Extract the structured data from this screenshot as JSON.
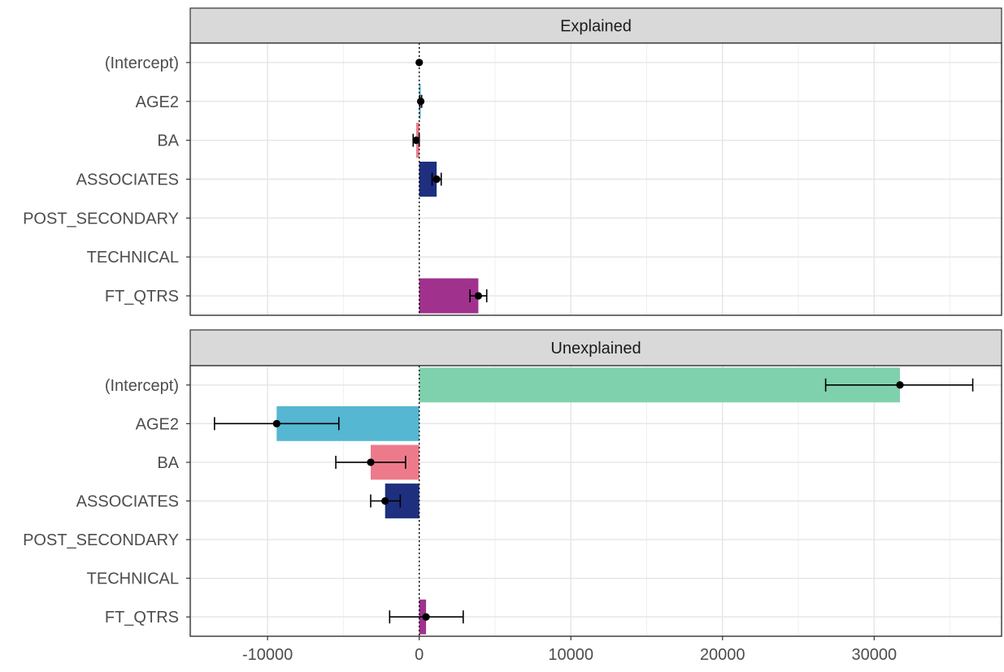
{
  "chart_data": {
    "type": "bar",
    "facets": [
      {
        "title": "Explained",
        "categories": [
          "(Intercept)",
          "AGE2",
          "BA",
          "ASSOCIATES",
          "POST_SECONDARY",
          "TECHNICAL",
          "FT_QTRS"
        ],
        "values": [
          0,
          100,
          -200,
          1150,
          0,
          0,
          3900
        ],
        "lower": [
          0,
          40,
          -400,
          850,
          0,
          0,
          3350
        ],
        "upper": [
          0,
          160,
          0,
          1450,
          0,
          0,
          4450
        ],
        "colors": [
          "#7fd1ae",
          "#55b7d1",
          "#ed7a8b",
          "#1e2f7f",
          "#000000",
          "#000000",
          "#a0328e"
        ],
        "show_point": [
          true,
          true,
          true,
          true,
          false,
          false,
          true
        ]
      },
      {
        "title": "Unexplained",
        "categories": [
          "(Intercept)",
          "AGE2",
          "BA",
          "ASSOCIATES",
          "POST_SECONDARY",
          "TECHNICAL",
          "FT_QTRS"
        ],
        "values": [
          31700,
          -9400,
          -3200,
          -2250,
          0,
          0,
          450
        ],
        "lower": [
          26800,
          -13500,
          -5500,
          -3200,
          0,
          0,
          -1950
        ],
        "upper": [
          36500,
          -5300,
          -900,
          -1250,
          0,
          0,
          2900
        ],
        "colors": [
          "#7fd1ae",
          "#55b7d1",
          "#ed7a8b",
          "#1e2f7f",
          "#000000",
          "#000000",
          "#a0328e"
        ],
        "show_point": [
          true,
          true,
          true,
          true,
          false,
          false,
          true
        ]
      }
    ],
    "x_ticks": [
      -10000,
      0,
      10000,
      20000,
      30000
    ],
    "x_tick_labels": [
      "-10000",
      "0",
      "10000",
      "20000",
      "30000"
    ],
    "xlim": [
      -15100,
      38400
    ],
    "reference_line": 0,
    "grid": true,
    "xlabel": "",
    "ylabel": ""
  }
}
